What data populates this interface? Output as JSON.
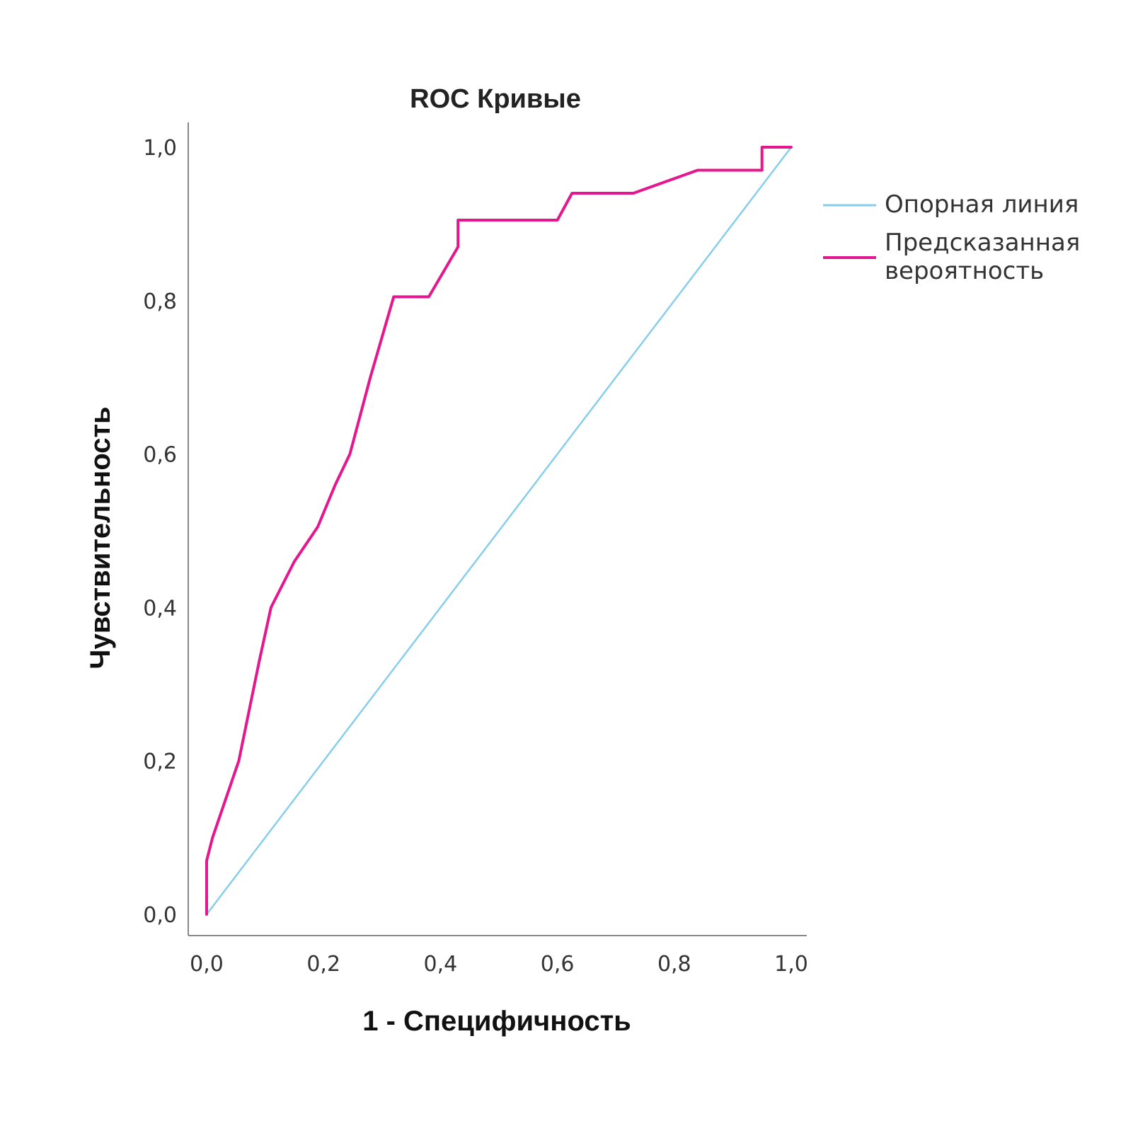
{
  "chart_data": {
    "type": "line",
    "title": "ROC Кривые",
    "xlabel": "1 - Специфичность",
    "ylabel": "Чувствительность",
    "xlim": [
      0,
      1
    ],
    "ylim": [
      0,
      1
    ],
    "x_ticks": [
      "0,0",
      "0,2",
      "0,4",
      "0,6",
      "0,8",
      "1,0"
    ],
    "y_ticks": [
      "0,0",
      "0,2",
      "0,4",
      "0,6",
      "0,8",
      "1,0"
    ],
    "grid": false,
    "legend_position": "right",
    "legend": [
      {
        "label_lines": [
          "Опорная линия"
        ],
        "color": "#87CEEB"
      },
      {
        "label_lines": [
          "Предсказанная",
          "вероятность"
        ],
        "color": "#E5178E"
      }
    ],
    "series": [
      {
        "name": "Опорная линия",
        "color": "#87CEEB",
        "points": [
          [
            0,
            0
          ],
          [
            1,
            1
          ]
        ]
      },
      {
        "name": "Предсказанная вероятность",
        "color": "#E5178E",
        "points": [
          [
            0,
            0
          ],
          [
            0,
            0.07
          ],
          [
            0.01,
            0.1
          ],
          [
            0.055,
            0.2
          ],
          [
            0.09,
            0.33
          ],
          [
            0.11,
            0.4
          ],
          [
            0.15,
            0.46
          ],
          [
            0.19,
            0.505
          ],
          [
            0.22,
            0.56
          ],
          [
            0.245,
            0.6
          ],
          [
            0.28,
            0.7
          ],
          [
            0.32,
            0.805
          ],
          [
            0.38,
            0.805
          ],
          [
            0.43,
            0.87
          ],
          [
            0.43,
            0.905
          ],
          [
            0.6,
            0.905
          ],
          [
            0.625,
            0.94
          ],
          [
            0.73,
            0.94
          ],
          [
            0.84,
            0.97
          ],
          [
            0.95,
            0.97
          ],
          [
            0.95,
            1.0
          ],
          [
            1.0,
            1.0
          ]
        ]
      }
    ]
  }
}
